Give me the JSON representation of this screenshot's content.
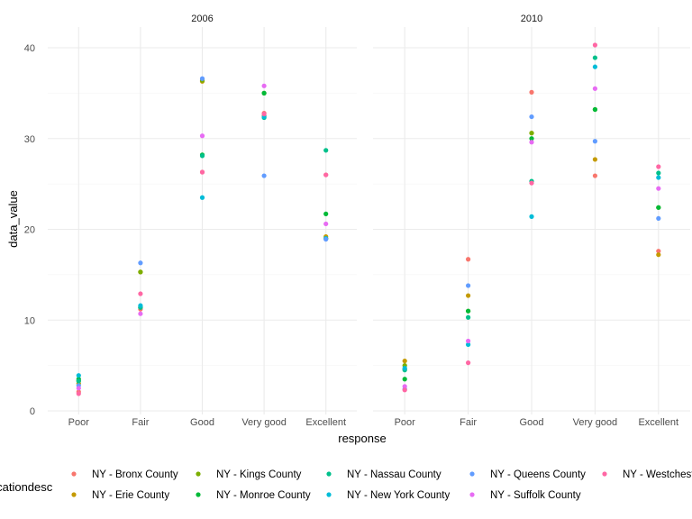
{
  "chart_data": {
    "type": "scatter",
    "xlabel": "response",
    "ylabel": "data_value",
    "ylim": [
      0,
      42
    ],
    "yticks": [
      0,
      10,
      20,
      30,
      40
    ],
    "categories": [
      "Poor",
      "Fair",
      "Good",
      "Very good",
      "Excellent"
    ],
    "grid": true,
    "legend_position": "bottom",
    "legend_title": "locationdesc",
    "series": [
      {
        "name": "NY - Bronx County",
        "color": "#F8766D"
      },
      {
        "name": "NY - Erie County",
        "color": "#C49A00"
      },
      {
        "name": "NY - Kings County",
        "color": "#7CAE00"
      },
      {
        "name": "NY - Monroe County",
        "color": "#00BA38"
      },
      {
        "name": "NY - Nassau County",
        "color": "#00C08B"
      },
      {
        "name": "NY - New York County",
        "color": "#00BCD8"
      },
      {
        "name": "NY - Queens County",
        "color": "#619CFF"
      },
      {
        "name": "NY - Suffolk County",
        "color": "#E76BF3"
      },
      {
        "name": "NY - Westchester County",
        "color": "#FF67A4"
      }
    ],
    "panels": [
      {
        "title": "2006",
        "points": [
          {
            "series": "NY - Bronx County",
            "x": "Poor",
            "y": 2.1
          },
          {
            "series": "NY - Erie County",
            "x": "Poor",
            "y": 3.0
          },
          {
            "series": "NY - Kings County",
            "x": "Poor",
            "y": 3.3
          },
          {
            "series": "NY - Monroe County",
            "x": "Poor",
            "y": 3.5
          },
          {
            "series": "NY - Nassau County",
            "x": "Poor",
            "y": 3.3
          },
          {
            "series": "NY - New York County",
            "x": "Poor",
            "y": 3.9
          },
          {
            "series": "NY - Queens County",
            "x": "Poor",
            "y": 2.8
          },
          {
            "series": "NY - Suffolk County",
            "x": "Poor",
            "y": 2.5
          },
          {
            "series": "NY - Westchester County",
            "x": "Poor",
            "y": 1.9
          },
          {
            "series": "NY - Bronx County",
            "x": "Fair",
            "y": 11.2
          },
          {
            "series": "NY - Erie County",
            "x": "Fair",
            "y": 15.3
          },
          {
            "series": "NY - Kings County",
            "x": "Fair",
            "y": 15.3
          },
          {
            "series": "NY - Monroe County",
            "x": "Fair",
            "y": 11.4
          },
          {
            "series": "NY - Nassau County",
            "x": "Fair",
            "y": 11.4
          },
          {
            "series": "NY - New York County",
            "x": "Fair",
            "y": 11.6
          },
          {
            "series": "NY - Queens County",
            "x": "Fair",
            "y": 16.3
          },
          {
            "series": "NY - Suffolk County",
            "x": "Fair",
            "y": 10.7
          },
          {
            "series": "NY - Westchester County",
            "x": "Fair",
            "y": 12.9
          },
          {
            "series": "NY - Bronx County",
            "x": "Good",
            "y": 26.3
          },
          {
            "series": "NY - Erie County",
            "x": "Good",
            "y": 36.3
          },
          {
            "series": "NY - Kings County",
            "x": "Good",
            "y": 36.4
          },
          {
            "series": "NY - Monroe County",
            "x": "Good",
            "y": 28.2
          },
          {
            "series": "NY - Nassau County",
            "x": "Good",
            "y": 28.1
          },
          {
            "series": "NY - New York County",
            "x": "Good",
            "y": 23.5
          },
          {
            "series": "NY - Queens County",
            "x": "Good",
            "y": 36.6
          },
          {
            "series": "NY - Suffolk County",
            "x": "Good",
            "y": 30.3
          },
          {
            "series": "NY - Westchester County",
            "x": "Good",
            "y": 26.3
          },
          {
            "series": "NY - Bronx County",
            "x": "Very good",
            "y": 32.8
          },
          {
            "series": "NY - Erie County",
            "x": "Very good",
            "y": 32.5
          },
          {
            "series": "NY - Kings County",
            "x": "Very good",
            "y": 35.0
          },
          {
            "series": "NY - Monroe County",
            "x": "Very good",
            "y": 35.0
          },
          {
            "series": "NY - Nassau County",
            "x": "Very good",
            "y": 32.3
          },
          {
            "series": "NY - New York County",
            "x": "Very good",
            "y": 32.4
          },
          {
            "series": "NY - Queens County",
            "x": "Very good",
            "y": 25.9
          },
          {
            "series": "NY - Suffolk County",
            "x": "Very good",
            "y": 35.8
          },
          {
            "series": "NY - Westchester County",
            "x": "Very good",
            "y": 32.7
          },
          {
            "series": "NY - Bronx County",
            "x": "Excellent",
            "y": 26.0
          },
          {
            "series": "NY - Erie County",
            "x": "Excellent",
            "y": 19.2
          },
          {
            "series": "NY - Kings County",
            "x": "Excellent",
            "y": 19.0
          },
          {
            "series": "NY - Monroe County",
            "x": "Excellent",
            "y": 21.7
          },
          {
            "series": "NY - Nassau County",
            "x": "Excellent",
            "y": 28.7
          },
          {
            "series": "NY - New York County",
            "x": "Excellent",
            "y": 19.0
          },
          {
            "series": "NY - Queens County",
            "x": "Excellent",
            "y": 18.9
          },
          {
            "series": "NY - Suffolk County",
            "x": "Excellent",
            "y": 20.6
          },
          {
            "series": "NY - Westchester County",
            "x": "Excellent",
            "y": 26.0
          }
        ]
      },
      {
        "title": "2010",
        "points": [
          {
            "series": "NY - Bronx County",
            "x": "Poor",
            "y": 4.6
          },
          {
            "series": "NY - Erie County",
            "x": "Poor",
            "y": 5.5
          },
          {
            "series": "NY - Kings County",
            "x": "Poor",
            "y": 5.0
          },
          {
            "series": "NY - Monroe County",
            "x": "Poor",
            "y": 3.5
          },
          {
            "series": "NY - Nassau County",
            "x": "Poor",
            "y": 4.5
          },
          {
            "series": "NY - New York County",
            "x": "Poor",
            "y": 4.7
          },
          {
            "series": "NY - Queens County",
            "x": "Poor",
            "y": 2.4
          },
          {
            "series": "NY - Suffolk County",
            "x": "Poor",
            "y": 2.7
          },
          {
            "series": "NY - Westchester County",
            "x": "Poor",
            "y": 2.3
          },
          {
            "series": "NY - Bronx County",
            "x": "Fair",
            "y": 16.7
          },
          {
            "series": "NY - Erie County",
            "x": "Fair",
            "y": 12.7
          },
          {
            "series": "NY - Kings County",
            "x": "Fair",
            "y": 11.0
          },
          {
            "series": "NY - Monroe County",
            "x": "Fair",
            "y": 11.0
          },
          {
            "series": "NY - Nassau County",
            "x": "Fair",
            "y": 10.3
          },
          {
            "series": "NY - New York County",
            "x": "Fair",
            "y": 7.3
          },
          {
            "series": "NY - Queens County",
            "x": "Fair",
            "y": 13.8
          },
          {
            "series": "NY - Suffolk County",
            "x": "Fair",
            "y": 7.7
          },
          {
            "series": "NY - Westchester County",
            "x": "Fair",
            "y": 5.3
          },
          {
            "series": "NY - Bronx County",
            "x": "Good",
            "y": 35.1
          },
          {
            "series": "NY - Erie County",
            "x": "Good",
            "y": 30.6
          },
          {
            "series": "NY - Kings County",
            "x": "Good",
            "y": 30.6
          },
          {
            "series": "NY - Monroe County",
            "x": "Good",
            "y": 30.0
          },
          {
            "series": "NY - Nassau County",
            "x": "Good",
            "y": 25.3
          },
          {
            "series": "NY - New York County",
            "x": "Good",
            "y": 21.4
          },
          {
            "series": "NY - Queens County",
            "x": "Good",
            "y": 32.4
          },
          {
            "series": "NY - Suffolk County",
            "x": "Good",
            "y": 29.6
          },
          {
            "series": "NY - Westchester County",
            "x": "Good",
            "y": 25.1
          },
          {
            "series": "NY - Bronx County",
            "x": "Very good",
            "y": 25.9
          },
          {
            "series": "NY - Erie County",
            "x": "Very good",
            "y": 27.7
          },
          {
            "series": "NY - Kings County",
            "x": "Very good",
            "y": 33.2
          },
          {
            "series": "NY - Monroe County",
            "x": "Very good",
            "y": 33.2
          },
          {
            "series": "NY - Nassau County",
            "x": "Very good",
            "y": 38.9
          },
          {
            "series": "NY - New York County",
            "x": "Very good",
            "y": 37.9
          },
          {
            "series": "NY - Queens County",
            "x": "Very good",
            "y": 29.7
          },
          {
            "series": "NY - Suffolk County",
            "x": "Very good",
            "y": 35.5
          },
          {
            "series": "NY - Westchester County",
            "x": "Very good",
            "y": 40.3
          },
          {
            "series": "NY - Bronx County",
            "x": "Excellent",
            "y": 17.6
          },
          {
            "series": "NY - Erie County",
            "x": "Excellent",
            "y": 17.2
          },
          {
            "series": "NY - Kings County",
            "x": "Excellent",
            "y": 22.4
          },
          {
            "series": "NY - Monroe County",
            "x": "Excellent",
            "y": 22.4
          },
          {
            "series": "NY - Nassau County",
            "x": "Excellent",
            "y": 26.2
          },
          {
            "series": "NY - New York County",
            "x": "Excellent",
            "y": 25.7
          },
          {
            "series": "NY - Queens County",
            "x": "Excellent",
            "y": 21.2
          },
          {
            "series": "NY - Suffolk County",
            "x": "Excellent",
            "y": 24.5
          },
          {
            "series": "NY - Westchester County",
            "x": "Excellent",
            "y": 26.9
          }
        ]
      }
    ]
  }
}
